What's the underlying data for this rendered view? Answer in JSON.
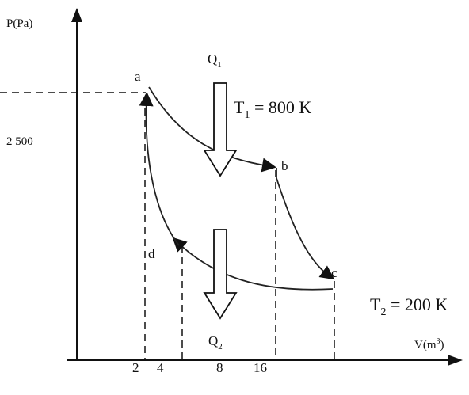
{
  "axes": {
    "y_label": "P(Pa)",
    "y_value": "2 500",
    "x_label": {
      "text": "V(m",
      "sup": "3",
      "close": ")"
    },
    "x_values": [
      "2",
      "4",
      "8",
      "16"
    ]
  },
  "points": [
    "a",
    "b",
    "c",
    "d"
  ],
  "heat": [
    {
      "label": "Q",
      "sub": "1"
    },
    {
      "label": "Q",
      "sub": "2"
    }
  ],
  "temperatures": [
    {
      "symbol": "T",
      "sub": "1",
      "rest": " = 800 K"
    },
    {
      "symbol": "T",
      "sub": "2",
      "rest": " = 200 K"
    }
  ]
}
